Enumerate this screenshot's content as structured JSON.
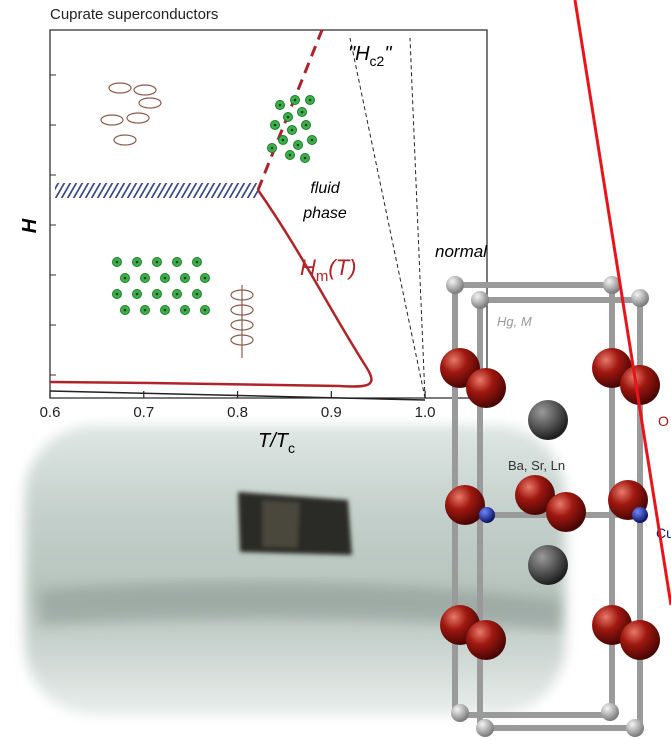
{
  "chart_data": {
    "type": "phase-diagram",
    "title": "Cuprate superconductors",
    "ylabel": "H",
    "xlabel": {
      "main": "T/T",
      "sub": "c"
    },
    "xlim": [
      0.6,
      1.066
    ],
    "xticks": [
      0.6,
      0.7,
      0.8,
      0.9,
      {
        "value": 1,
        "label": "1.0"
      }
    ],
    "annotations": {
      "hc2": {
        "open": "\"H",
        "sub": "c2",
        "close": "\""
      },
      "fluid": [
        "fluid",
        "phase"
      ],
      "hm": {
        "main": "H",
        "sub": "m",
        "end": "(T)"
      },
      "normal": "normal"
    }
  },
  "structure": {
    "labels": [
      "Hg, M",
      "Ba, Sr, Ln",
      "O",
      "Cu"
    ]
  }
}
